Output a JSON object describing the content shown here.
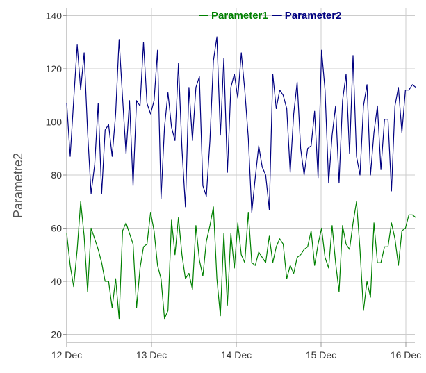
{
  "chart_data": {
    "type": "line",
    "title": "",
    "xlabel": "",
    "ylabel": "Parametre2",
    "ylim": [
      17,
      143
    ],
    "y_ticks": [
      20,
      40,
      60,
      80,
      100,
      120,
      140
    ],
    "y_tick_labels": [
      "20",
      "40",
      "60",
      "80",
      "100",
      "120",
      "140"
    ],
    "xlim": [
      0,
      4.15
    ],
    "x_ticks": [
      0,
      1,
      2,
      3,
      4
    ],
    "x_tick_labels": [
      "12 Dec",
      "13 Dec",
      "14 Dec",
      "15 Dec",
      "16 Dec"
    ],
    "grid": true,
    "legend_position": "top-center",
    "series": [
      {
        "name": "Parameter1",
        "color": "#008000",
        "x": [
          0,
          0.041,
          0.082,
          0.124,
          0.165,
          0.206,
          0.247,
          0.288,
          0.33,
          0.371,
          0.412,
          0.453,
          0.494,
          0.536,
          0.577,
          0.618,
          0.659,
          0.7,
          0.741,
          0.783,
          0.824,
          0.865,
          0.906,
          0.947,
          0.989,
          1.03,
          1.071,
          1.112,
          1.153,
          1.194,
          1.236,
          1.277,
          1.318,
          1.359,
          1.4,
          1.442,
          1.483,
          1.524,
          1.565,
          1.606,
          1.647,
          1.689,
          1.73,
          1.771,
          1.812,
          1.853,
          1.895,
          1.936,
          1.977,
          2.018,
          2.059,
          2.1,
          2.142,
          2.183,
          2.224,
          2.265,
          2.306,
          2.347,
          2.389,
          2.43,
          2.471,
          2.512,
          2.553,
          2.595,
          2.636,
          2.677,
          2.718,
          2.759,
          2.8,
          2.842,
          2.883,
          2.924,
          2.965,
          3.006,
          3.047,
          3.089,
          3.13,
          3.171,
          3.212,
          3.253,
          3.295,
          3.336,
          3.377,
          3.418,
          3.459,
          3.5,
          3.542,
          3.583,
          3.624,
          3.665,
          3.706,
          3.748,
          3.789,
          3.83,
          3.871,
          3.912,
          3.953,
          3.995,
          4.036,
          4.077,
          4.118
        ],
        "values": [
          58,
          46,
          38,
          52,
          70,
          57,
          36,
          60,
          56,
          52,
          47,
          40,
          40,
          30,
          41,
          26,
          59,
          62,
          58,
          54,
          30,
          45,
          53,
          54,
          66,
          59,
          46,
          41,
          26,
          29,
          63,
          50,
          64,
          50,
          41,
          43,
          37,
          61,
          48,
          42,
          55,
          61,
          68,
          41,
          27,
          58,
          31,
          58,
          45,
          62,
          50,
          47,
          66,
          47,
          46,
          51,
          49,
          47,
          57,
          47,
          53,
          56,
          54,
          41,
          46,
          43,
          49,
          50,
          52,
          53,
          59,
          46,
          54,
          60,
          49,
          45,
          61,
          47,
          36,
          61,
          54,
          52,
          62,
          70,
          52,
          29,
          40,
          34,
          62,
          47,
          47,
          53,
          53,
          62,
          56,
          46,
          59,
          60,
          65,
          65,
          64
        ]
      },
      {
        "name": "Parameter2",
        "color": "#000080",
        "x": [
          0,
          0.041,
          0.082,
          0.124,
          0.165,
          0.206,
          0.247,
          0.288,
          0.33,
          0.371,
          0.412,
          0.453,
          0.494,
          0.536,
          0.577,
          0.618,
          0.659,
          0.7,
          0.741,
          0.783,
          0.824,
          0.865,
          0.906,
          0.947,
          0.989,
          1.03,
          1.071,
          1.112,
          1.153,
          1.194,
          1.236,
          1.277,
          1.318,
          1.359,
          1.4,
          1.442,
          1.483,
          1.524,
          1.565,
          1.606,
          1.647,
          1.689,
          1.73,
          1.771,
          1.812,
          1.853,
          1.895,
          1.936,
          1.977,
          2.018,
          2.059,
          2.1,
          2.142,
          2.183,
          2.224,
          2.265,
          2.306,
          2.347,
          2.389,
          2.43,
          2.471,
          2.512,
          2.553,
          2.595,
          2.636,
          2.677,
          2.718,
          2.759,
          2.8,
          2.842,
          2.883,
          2.924,
          2.965,
          3.006,
          3.047,
          3.089,
          3.13,
          3.171,
          3.212,
          3.253,
          3.295,
          3.336,
          3.377,
          3.418,
          3.459,
          3.5,
          3.542,
          3.583,
          3.624,
          3.665,
          3.706,
          3.748,
          3.789,
          3.83,
          3.871,
          3.912,
          3.953,
          3.995,
          4.036,
          4.077,
          4.118
        ],
        "values": [
          107,
          87,
          108,
          129,
          112,
          126,
          96,
          73,
          84,
          107,
          73,
          97,
          99,
          87,
          103,
          131,
          109,
          88,
          108,
          76,
          108,
          106,
          130,
          107,
          103,
          108,
          127,
          71,
          98,
          111,
          98,
          93,
          122,
          90,
          68,
          113,
          93,
          113,
          117,
          76,
          72,
          93,
          123,
          132,
          95,
          124,
          81,
          113,
          118,
          109,
          126,
          112,
          94,
          66,
          79,
          91,
          83,
          80,
          67,
          118,
          105,
          112,
          110,
          105,
          81,
          103,
          115,
          90,
          80,
          90,
          91,
          104,
          79,
          127,
          112,
          77,
          95,
          106,
          77,
          108,
          118,
          88,
          125,
          87,
          80,
          106,
          114,
          80,
          96,
          106,
          82,
          101,
          101,
          74,
          106,
          113,
          96,
          112,
          112,
          114,
          113
        ]
      }
    ]
  }
}
